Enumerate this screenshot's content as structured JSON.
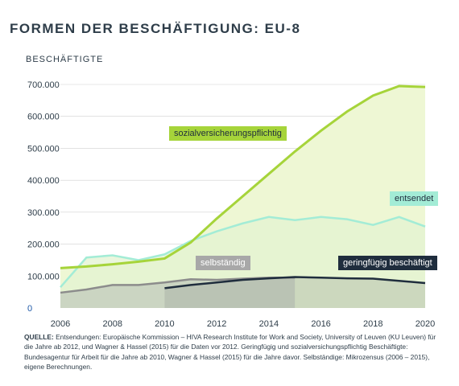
{
  "title": "FORMEN DER BESCHÄFTIGUNG: EU-8",
  "ylabel": "BESCHÄFTIGTE",
  "source_label": "QUELLE:",
  "source_text": "Entsendungen: Europäische Kommission – HIVA Research Institute for Work and Society, University of Leuven (KU Leuven) für die Jahre ab 2012, und Wagner & Hassel (2015) für die Daten vor 2012. Geringfügig und sozialversichungspflichtig Beschäftigte: Bundesagentur für Arbeit für die Jahre ab 2010, Wagner & Hassel (2015) für die Jahre davor. Selbständige: Mikrozensus (2006 – 2015), eigene Berechnungen.",
  "colors": {
    "svp_line": "#a6d43a",
    "svp_fill": "#eef7d4",
    "svp_label_bg": "#a6d43a",
    "ent_line": "#a3ecd6",
    "ent_label_bg": "#a3ecd6",
    "selb_line": "#8c8c8c",
    "selb_label_bg": "#a8a8a8",
    "ger_line": "#1f2d3d",
    "ger_label_bg": "#1f2d3d"
  },
  "chart_data": {
    "type": "area",
    "title": "FORMEN DER BESCHÄFTIGUNG: EU-8",
    "ylabel": "BESCHÄFTIGTE",
    "xlim": [
      2006,
      2020
    ],
    "ylim": [
      0,
      700000
    ],
    "x_ticks": [
      "2006",
      "2008",
      "2010",
      "2012",
      "2014",
      "2016",
      "2018",
      "2020"
    ],
    "y_ticks": [
      "0",
      "100.000",
      "200.000",
      "300.000",
      "400.000",
      "500.000",
      "600.000",
      "700.000"
    ],
    "series": [
      {
        "name": "sozialversicherungspflichtig",
        "x": [
          2006,
          2007,
          2008,
          2009,
          2010,
          2011,
          2012,
          2013,
          2014,
          2015,
          2016,
          2017,
          2018,
          2019,
          2020
        ],
        "values": [
          125000,
          130000,
          137000,
          145000,
          155000,
          205000,
          280000,
          350000,
          420000,
          490000,
          555000,
          615000,
          665000,
          695000,
          692000
        ]
      },
      {
        "name": "entsendet",
        "x": [
          2006,
          2007,
          2008,
          2009,
          2010,
          2011,
          2012,
          2013,
          2014,
          2015,
          2016,
          2017,
          2018,
          2019,
          2020
        ],
        "values": [
          65000,
          158000,
          165000,
          150000,
          168000,
          210000,
          240000,
          265000,
          285000,
          275000,
          285000,
          278000,
          260000,
          285000,
          255000
        ]
      },
      {
        "name": "selbständig",
        "x": [
          2006,
          2007,
          2008,
          2009,
          2010,
          2011,
          2012,
          2013,
          2014,
          2015
        ],
        "values": [
          48000,
          58000,
          72000,
          72000,
          80000,
          90000,
          88000,
          92000,
          95000,
          95000
        ]
      },
      {
        "name": "geringfügig beschäftigt",
        "x": [
          2010,
          2011,
          2012,
          2013,
          2014,
          2015,
          2016,
          2017,
          2018,
          2019,
          2020
        ],
        "values": [
          62000,
          72000,
          80000,
          88000,
          93000,
          97000,
          95000,
          93000,
          92000,
          85000,
          78000
        ]
      }
    ],
    "labels": {
      "svp": "sozialversicherungspflichtig",
      "ent": "entsendet",
      "selb": "selbständig",
      "ger": "geringfügig beschäftigt"
    },
    "grid": "horizontal",
    "legend": "inline labels"
  }
}
